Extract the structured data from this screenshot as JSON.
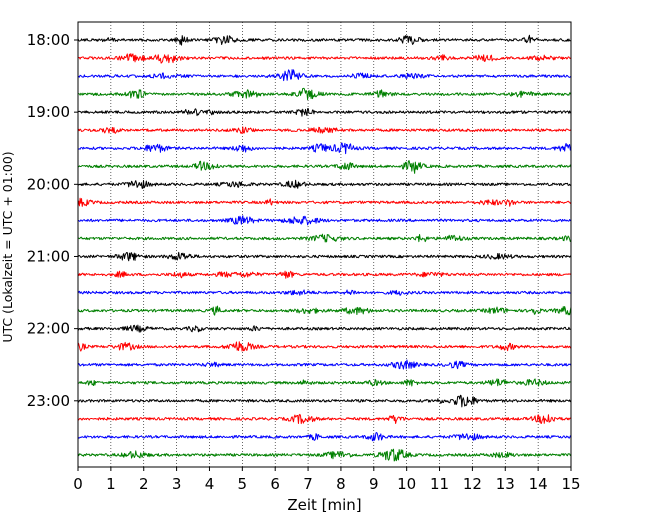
{
  "chart_data": {
    "type": "line",
    "title": "",
    "xlabel": "Zeit  [min]",
    "ylabel": "UTC (Lokalzeit = UTC + 01:00)",
    "xlim": [
      0,
      15
    ],
    "x_ticks": [
      "0",
      "1",
      "2",
      "3",
      "4",
      "5",
      "6",
      "7",
      "8",
      "9",
      "10",
      "11",
      "12",
      "13",
      "14",
      "15"
    ],
    "y_tick_labels": [
      "18:00",
      "19:00",
      "20:00",
      "21:00",
      "22:00",
      "23:00"
    ],
    "grid": "vertical dotted at each minute",
    "rows_per_hour": 4,
    "trace_minutes": 15,
    "traces": [
      {
        "start": "18:00",
        "color": "#000000"
      },
      {
        "start": "18:15",
        "color": "#ff0000"
      },
      {
        "start": "18:30",
        "color": "#0000ff"
      },
      {
        "start": "18:45",
        "color": "#008000"
      },
      {
        "start": "19:00",
        "color": "#000000"
      },
      {
        "start": "19:15",
        "color": "#ff0000"
      },
      {
        "start": "19:30",
        "color": "#0000ff"
      },
      {
        "start": "19:45",
        "color": "#008000"
      },
      {
        "start": "20:00",
        "color": "#000000"
      },
      {
        "start": "20:15",
        "color": "#ff0000"
      },
      {
        "start": "20:30",
        "color": "#0000ff"
      },
      {
        "start": "20:45",
        "color": "#008000"
      },
      {
        "start": "21:00",
        "color": "#000000"
      },
      {
        "start": "21:15",
        "color": "#ff0000"
      },
      {
        "start": "21:30",
        "color": "#0000ff"
      },
      {
        "start": "21:45",
        "color": "#008000"
      },
      {
        "start": "22:00",
        "color": "#000000"
      },
      {
        "start": "22:15",
        "color": "#ff0000"
      },
      {
        "start": "22:30",
        "color": "#0000ff"
      },
      {
        "start": "22:45",
        "color": "#008000"
      },
      {
        "start": "23:00",
        "color": "#000000"
      },
      {
        "start": "23:15",
        "color": "#ff0000"
      },
      {
        "start": "23:30",
        "color": "#0000ff"
      },
      {
        "start": "23:45",
        "color": "#008000"
      }
    ]
  }
}
